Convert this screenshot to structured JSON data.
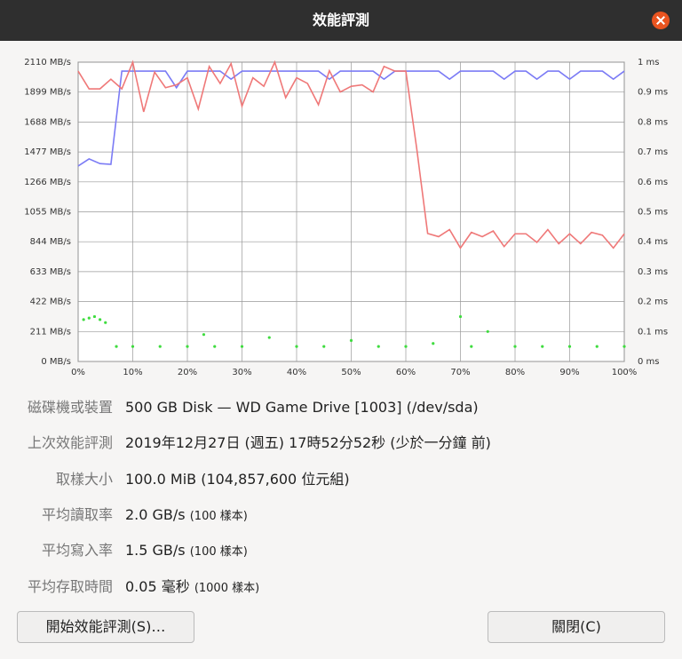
{
  "window": {
    "title": "效能評測"
  },
  "chart_data": {
    "type": "line",
    "x": [
      0,
      2,
      4,
      6,
      8,
      10,
      12,
      14,
      16,
      18,
      20,
      22,
      24,
      26,
      28,
      30,
      32,
      34,
      36,
      38,
      40,
      42,
      44,
      46,
      48,
      50,
      52,
      54,
      56,
      58,
      60,
      62,
      64,
      66,
      68,
      70,
      72,
      74,
      76,
      78,
      80,
      82,
      84,
      86,
      88,
      90,
      92,
      94,
      96,
      98,
      100
    ],
    "series": [
      {
        "color": "#7b7bf5",
        "values": [
          1378,
          1428,
          1395,
          1390,
          2047,
          2047,
          2047,
          2047,
          2047,
          1930,
          2047,
          2047,
          2047,
          2047,
          1990,
          2047,
          2047,
          2047,
          2047,
          2047,
          2047,
          2047,
          2047,
          1990,
          2047,
          2047,
          2047,
          2047,
          1990,
          2047,
          2047,
          2047,
          2047,
          2047,
          1990,
          2047,
          2047,
          2047,
          2047,
          1990,
          2047,
          2047,
          1990,
          2047,
          2047,
          1990,
          2047,
          2047,
          2047,
          1990,
          2047
        ]
      },
      {
        "color": "#ef7878",
        "values": [
          2047,
          1922,
          1922,
          1990,
          1922,
          2110,
          1760,
          2040,
          1930,
          1950,
          2000,
          1780,
          2080,
          1960,
          2100,
          1800,
          2000,
          1940,
          2110,
          1860,
          2000,
          1960,
          1810,
          2050,
          1900,
          1940,
          1950,
          1900,
          2080,
          2047,
          2047,
          1500,
          902,
          880,
          930,
          800,
          910,
          880,
          920,
          810,
          900,
          900,
          840,
          930,
          830,
          900,
          830,
          910,
          890,
          800,
          900
        ]
      },
      {
        "type": "scatter",
        "axis": "y2",
        "color": "#3fdc3f",
        "x": [
          1,
          2,
          3,
          4,
          5,
          7,
          10,
          15,
          20,
          23,
          25,
          30,
          35,
          40,
          45,
          50,
          55,
          60,
          65,
          70,
          72,
          75,
          80,
          85,
          90,
          95,
          100
        ],
        "values": [
          0.14,
          0.145,
          0.15,
          0.14,
          0.13,
          0.05,
          0.05,
          0.05,
          0.05,
          0.09,
          0.05,
          0.05,
          0.08,
          0.05,
          0.05,
          0.07,
          0.05,
          0.05,
          0.06,
          0.15,
          0.05,
          0.1,
          0.05,
          0.05,
          0.05,
          0.05,
          0.05
        ]
      }
    ],
    "xlim": [
      0,
      100
    ],
    "xticks": [
      {
        "value": 0,
        "label": "0%"
      },
      {
        "value": 10,
        "label": "10%"
      },
      {
        "value": 20,
        "label": "20%"
      },
      {
        "value": 30,
        "label": "30%"
      },
      {
        "value": 40,
        "label": "40%"
      },
      {
        "value": 50,
        "label": "50%"
      },
      {
        "value": 60,
        "label": "60%"
      },
      {
        "value": 70,
        "label": "70%"
      },
      {
        "value": 80,
        "label": "80%"
      },
      {
        "value": 90,
        "label": "90%"
      },
      {
        "value": 100,
        "label": "100%"
      }
    ],
    "ylim": [
      0,
      2110
    ],
    "yticks": [
      {
        "value": 0,
        "label": "0 MB/s"
      },
      {
        "value": 211,
        "label": "211 MB/s"
      },
      {
        "value": 422,
        "label": "422 MB/s"
      },
      {
        "value": 633,
        "label": "633 MB/s"
      },
      {
        "value": 844,
        "label": "844 MB/s"
      },
      {
        "value": 1055,
        "label": "1055 MB/s"
      },
      {
        "value": 1266,
        "label": "1266 MB/s"
      },
      {
        "value": 1477,
        "label": "1477 MB/s"
      },
      {
        "value": 1688,
        "label": "1688 MB/s"
      },
      {
        "value": 1899,
        "label": "1899 MB/s"
      },
      {
        "value": 2110,
        "label": "2110 MB/s"
      }
    ],
    "y2lim": [
      0,
      1
    ],
    "y2ticks": [
      {
        "value": 0,
        "label": "0 ms"
      },
      {
        "value": 0.1,
        "label": "0.1 ms"
      },
      {
        "value": 0.2,
        "label": "0.2 ms"
      },
      {
        "value": 0.3,
        "label": "0.3 ms"
      },
      {
        "value": 0.4,
        "label": "0.4 ms"
      },
      {
        "value": 0.5,
        "label": "0.5 ms"
      },
      {
        "value": 0.6,
        "label": "0.6 ms"
      },
      {
        "value": 0.7,
        "label": "0.7 ms"
      },
      {
        "value": 0.8,
        "label": "0.8 ms"
      },
      {
        "value": 0.9,
        "label": "0.9 ms"
      },
      {
        "value": 1,
        "label": "1 ms"
      }
    ],
    "grid": true
  },
  "info": [
    {
      "label": "磁碟機或裝置",
      "value": "500 GB Disk — WD Game Drive [1003] (/dev/sda)"
    },
    {
      "label": "上次效能評測",
      "value": "2019年12月27日 (週五) 17時52分52秒 (少於一分鐘 前)"
    },
    {
      "label": "取樣大小",
      "value": "100.0 MiB (104,857,600 位元組)"
    },
    {
      "label": "平均讀取率",
      "value": "2.0 GB/s",
      "note": "(100 樣本)"
    },
    {
      "label": "平均寫入率",
      "value": "1.5 GB/s",
      "note": "(100 樣本)"
    },
    {
      "label": "平均存取時間",
      "value": "0.05 毫秒",
      "note": "(1000 樣本)"
    }
  ],
  "buttons": {
    "start": "開始效能評測(S)…",
    "close": "關閉(C)"
  }
}
